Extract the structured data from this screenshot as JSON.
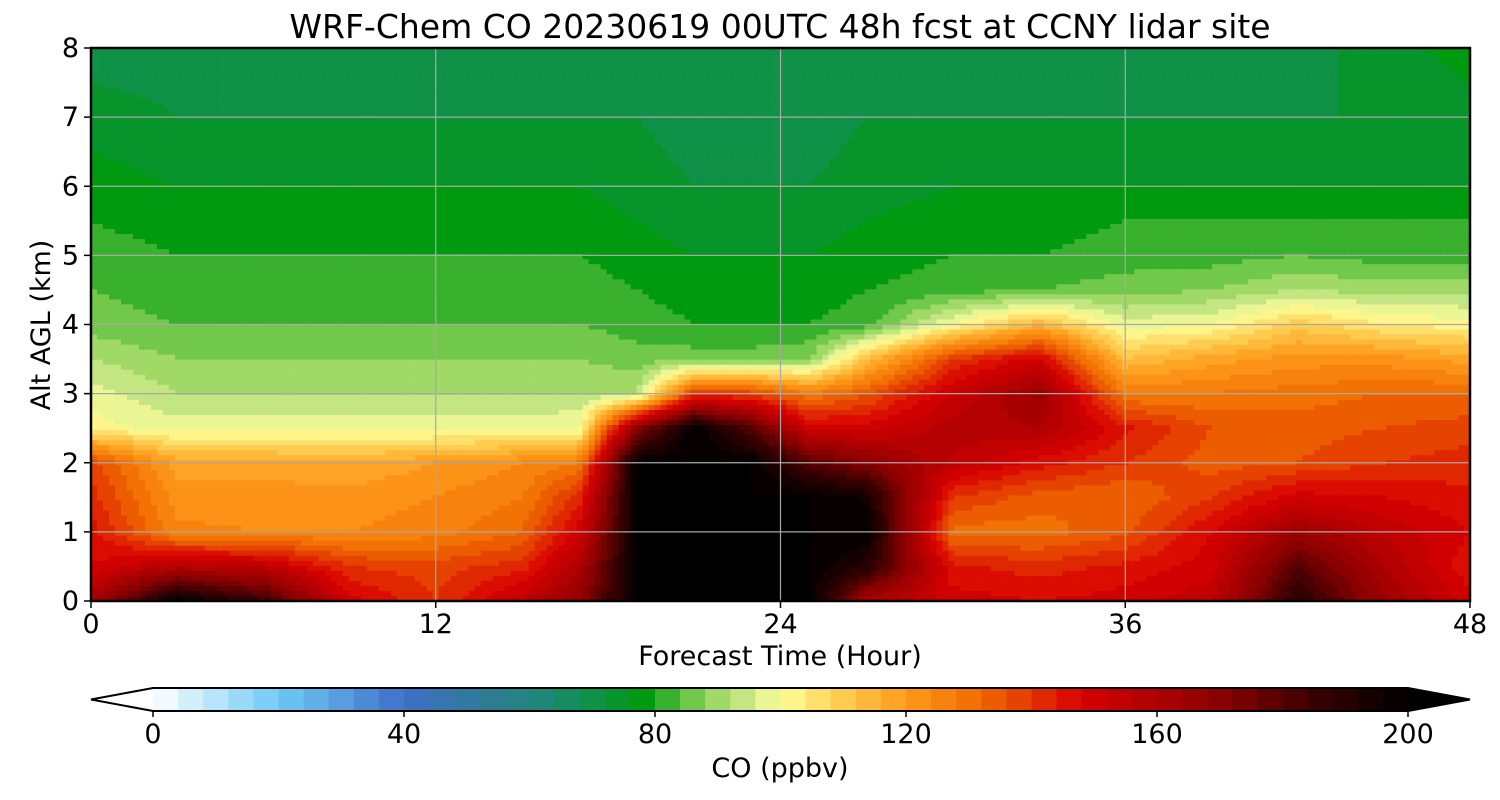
{
  "chart_data": {
    "type": "heatmap",
    "title": "WRF-Chem CO  20230619 00UTC 48h fcst at CCNY lidar site",
    "xlabel": "Forecast Time (Hour)",
    "ylabel": "Alt AGL (km)",
    "xlim": [
      0,
      48
    ],
    "ylim": [
      0,
      8
    ],
    "x_ticks": [
      0,
      12,
      24,
      36,
      48
    ],
    "y_ticks": [
      0,
      1,
      2,
      3,
      4,
      5,
      6,
      7,
      8
    ],
    "grid": true,
    "colorbar": {
      "label": "CO  (ppbv)",
      "orientation": "horizontal",
      "ticks": [
        0,
        40,
        80,
        120,
        160,
        200
      ],
      "range": [
        0,
        200
      ],
      "extend": "both",
      "levels": 50,
      "colors": [
        [
          0,
          "#ffffff"
        ],
        [
          20,
          "#6fcaf6"
        ],
        [
          40,
          "#3f6fc8"
        ],
        [
          56,
          "#2a7f8a"
        ],
        [
          64,
          "#1a8a70"
        ],
        [
          78,
          "#009a10"
        ],
        [
          88,
          "#8ed35a"
        ],
        [
          96,
          "#d4ec8f"
        ],
        [
          100,
          "#ffff99"
        ],
        [
          110,
          "#ffcc4f"
        ],
        [
          120,
          "#ff9a1a"
        ],
        [
          132,
          "#ef6a00"
        ],
        [
          148,
          "#d70000"
        ],
        [
          170,
          "#8a0000"
        ],
        [
          185,
          "#3a0000"
        ],
        [
          200,
          "#000000"
        ]
      ]
    },
    "altitudes_km": [
      0,
      0.5,
      1,
      1.5,
      2,
      2.5,
      3,
      3.5,
      4,
      4.5,
      5,
      5.5,
      6,
      7,
      8
    ],
    "columns": [
      {
        "x": 0,
        "values": [
          162,
          148,
          146,
          142,
          138,
          102,
          98,
          92,
          86,
          84,
          82,
          80,
          78,
          74,
          70
        ]
      },
      {
        "x": 3,
        "values": [
          200,
          158,
          125,
          122,
          118,
          98,
          92,
          88,
          84,
          82,
          80,
          78,
          76,
          72,
          70
        ]
      },
      {
        "x": 6,
        "values": [
          185,
          155,
          124,
          122,
          118,
          98,
          92,
          88,
          84,
          82,
          80,
          78,
          76,
          72,
          70
        ]
      },
      {
        "x": 9,
        "values": [
          150,
          140,
          124,
          122,
          116,
          98,
          92,
          88,
          84,
          82,
          80,
          78,
          76,
          72,
          70
        ]
      },
      {
        "x": 12,
        "values": [
          140,
          138,
          126,
          124,
          120,
          98,
          92,
          88,
          84,
          82,
          80,
          78,
          76,
          72,
          70
        ]
      },
      {
        "x": 15,
        "values": [
          155,
          142,
          132,
          128,
          124,
          98,
          92,
          88,
          84,
          82,
          80,
          78,
          76,
          72,
          70
        ]
      },
      {
        "x": 17,
        "values": [
          168,
          160,
          150,
          142,
          128,
          100,
          92,
          88,
          84,
          82,
          80,
          78,
          76,
          72,
          70
        ]
      },
      {
        "x": 19,
        "values": [
          200,
          200,
          200,
          200,
          200,
          170,
          92,
          86,
          82,
          80,
          78,
          76,
          74,
          72,
          70
        ]
      },
      {
        "x": 21,
        "values": [
          200,
          200,
          200,
          200,
          200,
          200,
          140,
          86,
          80,
          78,
          76,
          74,
          72,
          70,
          70
        ]
      },
      {
        "x": 23,
        "values": [
          200,
          200,
          200,
          200,
          200,
          180,
          138,
          86,
          80,
          78,
          76,
          74,
          72,
          70,
          70
        ]
      },
      {
        "x": 25,
        "values": [
          200,
          200,
          200,
          200,
          180,
          150,
          128,
          88,
          80,
          78,
          76,
          74,
          72,
          70,
          70
        ]
      },
      {
        "x": 27,
        "values": [
          162,
          190,
          200,
          195,
          170,
          150,
          135,
          112,
          82,
          80,
          78,
          76,
          74,
          72,
          70
        ]
      },
      {
        "x": 30,
        "values": [
          150,
          145,
          130,
          140,
          155,
          158,
          152,
          140,
          100,
          82,
          80,
          78,
          76,
          72,
          70
        ]
      },
      {
        "x": 33,
        "values": [
          148,
          142,
          130,
          134,
          146,
          160,
          166,
          150,
          115,
          84,
          80,
          78,
          76,
          72,
          70
        ]
      },
      {
        "x": 36,
        "values": [
          150,
          145,
          135,
          132,
          140,
          145,
          128,
          112,
          98,
          86,
          82,
          80,
          76,
          72,
          70
        ]
      },
      {
        "x": 39,
        "values": [
          155,
          150,
          148,
          140,
          134,
          136,
          128,
          118,
          100,
          88,
          82,
          80,
          76,
          72,
          70
        ]
      },
      {
        "x": 42,
        "values": [
          190,
          180,
          165,
          150,
          136,
          134,
          130,
          122,
          110,
          92,
          84,
          80,
          76,
          72,
          70
        ]
      },
      {
        "x": 45,
        "values": [
          165,
          160,
          155,
          148,
          140,
          136,
          132,
          122,
          104,
          90,
          82,
          80,
          76,
          72,
          74
        ]
      },
      {
        "x": 48,
        "values": [
          150,
          145,
          148,
          145,
          142,
          138,
          132,
          118,
          102,
          90,
          82,
          80,
          76,
          74,
          78
        ]
      }
    ]
  }
}
